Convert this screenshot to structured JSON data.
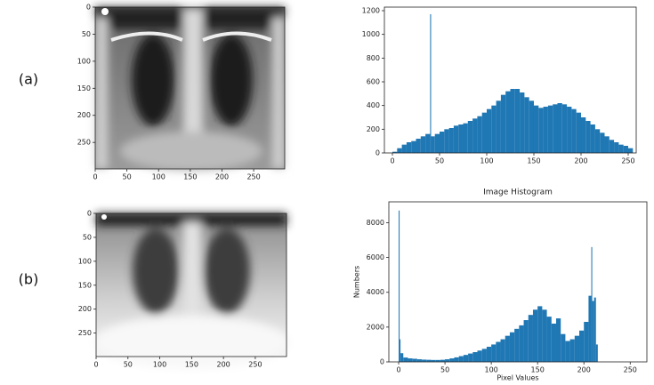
{
  "panel_labels": [
    "(a)",
    "(b)"
  ],
  "chart_data": [
    {
      "type": "image",
      "xlim": [
        0,
        299
      ],
      "ylim": [
        299,
        0
      ],
      "xticks": [
        0,
        50,
        100,
        150,
        200,
        250
      ],
      "yticks": [
        0,
        50,
        100,
        150,
        200,
        250
      ]
    },
    {
      "type": "histogram",
      "color": "#1f77b4",
      "bins": [
        0,
        5,
        10,
        15,
        20,
        25,
        30,
        35,
        40,
        41,
        45,
        50,
        55,
        60,
        65,
        70,
        75,
        80,
        85,
        90,
        95,
        100,
        105,
        110,
        115,
        120,
        125,
        130,
        135,
        140,
        145,
        150,
        155,
        160,
        165,
        170,
        175,
        180,
        185,
        190,
        195,
        200,
        205,
        210,
        215,
        220,
        225,
        230,
        235,
        240,
        245,
        250,
        255
      ],
      "values": [
        10,
        40,
        70,
        90,
        100,
        120,
        140,
        160,
        1170,
        140,
        160,
        180,
        200,
        210,
        230,
        240,
        250,
        270,
        290,
        310,
        340,
        370,
        400,
        440,
        490,
        520,
        540,
        540,
        510,
        470,
        440,
        400,
        380,
        390,
        400,
        410,
        420,
        410,
        390,
        370,
        340,
        300,
        270,
        240,
        200,
        170,
        140,
        110,
        90,
        70,
        60,
        40
      ],
      "xlim": [
        -8.5,
        258.5
      ],
      "ylim": [
        0,
        1230
      ],
      "xticks": [
        0,
        50,
        100,
        150,
        200,
        250
      ],
      "yticks": [
        0,
        200,
        400,
        600,
        800,
        1000,
        1200
      ]
    },
    {
      "type": "image",
      "xlim": [
        0,
        299
      ],
      "ylim": [
        299,
        0
      ],
      "xticks": [
        0,
        50,
        100,
        150,
        200,
        250
      ],
      "yticks": [
        0,
        50,
        100,
        150,
        200,
        250
      ]
    },
    {
      "type": "histogram",
      "title": "Image Histogram",
      "xlabel": "Pixel Values",
      "ylabel": "Numbers",
      "color": "#1f77b4",
      "bins": [
        0,
        1,
        2,
        5,
        10,
        15,
        20,
        25,
        30,
        35,
        40,
        45,
        50,
        55,
        60,
        65,
        70,
        75,
        80,
        85,
        90,
        95,
        100,
        105,
        110,
        115,
        120,
        125,
        130,
        135,
        140,
        145,
        150,
        155,
        160,
        165,
        170,
        175,
        180,
        185,
        190,
        195,
        200,
        205,
        208,
        209,
        211,
        213,
        215
      ],
      "values": [
        8700,
        1300,
        500,
        250,
        200,
        180,
        150,
        130,
        120,
        110,
        110,
        120,
        150,
        200,
        260,
        330,
        400,
        480,
        560,
        650,
        750,
        870,
        1000,
        1150,
        1300,
        1500,
        1700,
        1900,
        2100,
        2400,
        2700,
        3000,
        3200,
        3000,
        2600,
        2200,
        2500,
        1600,
        1200,
        1300,
        1500,
        1800,
        2300,
        3800,
        6600,
        3500,
        3700,
        1000
      ],
      "xlim": [
        -10.6,
        268
      ],
      "ylim": [
        0,
        9200
      ],
      "xticks": [
        0,
        50,
        100,
        150,
        200,
        250
      ],
      "yticks": [
        0,
        2000,
        4000,
        6000,
        8000
      ]
    }
  ]
}
